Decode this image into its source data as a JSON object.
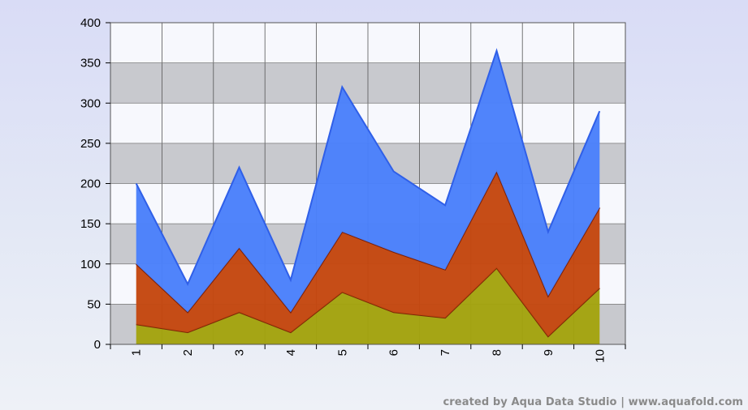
{
  "chart_data": {
    "type": "area",
    "stacked": true,
    "categories": [
      "1",
      "2",
      "3",
      "4",
      "5",
      "6",
      "7",
      "8",
      "9",
      "10"
    ],
    "series": [
      {
        "values": [
          25,
          15,
          40,
          15,
          65,
          40,
          33,
          95,
          10,
          70
        ],
        "color": "#a3a30e",
        "line_color": "#7a2a08"
      },
      {
        "values": [
          75,
          25,
          80,
          25,
          75,
          75,
          60,
          120,
          50,
          100
        ],
        "color": "#c4470f",
        "line_color": "#7a1f08"
      },
      {
        "values": [
          100,
          35,
          100,
          40,
          180,
          100,
          80,
          150,
          80,
          120
        ],
        "color": "#4a80fb",
        "line_color": "#2f5fe8"
      }
    ],
    "yticks": [
      "0",
      "50",
      "100",
      "150",
      "200",
      "250",
      "300",
      "350",
      "400"
    ],
    "ylim": [
      0,
      400
    ],
    "grid": true,
    "legend": "none",
    "title": "",
    "xlabel": "",
    "ylabel": ""
  },
  "footer": {
    "credit": "created by Aqua Data Studio | www.aquafold.com"
  }
}
